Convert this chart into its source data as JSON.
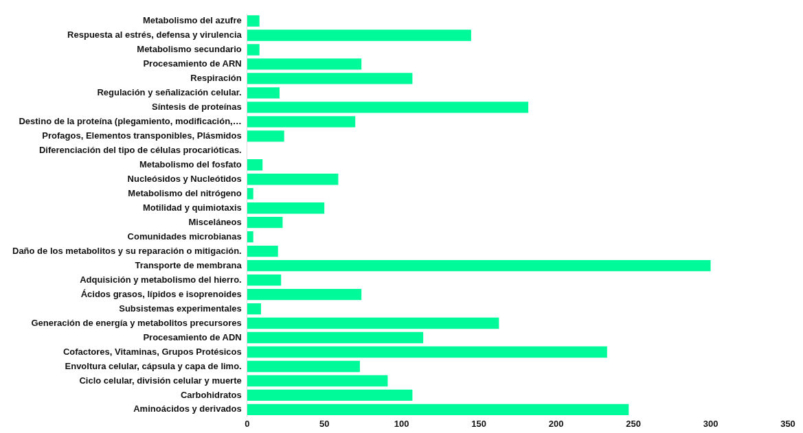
{
  "chart_data": {
    "type": "bar",
    "orientation": "horizontal",
    "categories": [
      "Metabolismo del azufre",
      "Respuesta al estrés, defensa y virulencia",
      "Metabolismo secundario",
      "Procesamiento de ARN",
      "Respiración",
      "Regulación y señalización celular.",
      "Síntesis de proteínas",
      "Destino de la proteína (plegamiento, modificación,…",
      "Profagos, Elementos transponibles, Plásmidos",
      "Diferenciación del tipo de células procarióticas.",
      "Metabolismo del fosfato",
      "Nucleósidos y Nucleótidos",
      "Metabolismo del nitrógeno",
      "Motilidad y quimiotaxis",
      "Misceláneos",
      "Comunidades microbianas",
      "Daño de los metabolitos y su reparación o mitigación.",
      "Transporte de membrana",
      "Adquisición y metabolismo del hierro.",
      "Ácidos grasos, lípidos e isoprenoides",
      "Subsistemas experimentales",
      "Generación de energía y metabolitos precursores",
      "Procesamiento de ADN",
      "Cofactores, Vitaminas, Grupos Protésicos",
      "Envoltura celular, cápsula y capa de limo.",
      "Ciclo celular, división celular y muerte",
      "Carbohidratos",
      "Aminoácidos y derivados"
    ],
    "values": [
      8,
      145,
      8,
      74,
      107,
      21,
      182,
      70,
      24,
      0,
      10,
      59,
      4,
      50,
      23,
      4,
      20,
      300,
      22,
      74,
      9,
      163,
      114,
      233,
      73,
      91,
      107,
      247
    ],
    "color": "#00fa9a",
    "xlim": [
      0,
      350
    ],
    "xticks": [
      0,
      50,
      100,
      150,
      200,
      250,
      300,
      350
    ],
    "grid": false,
    "legend": false
  }
}
